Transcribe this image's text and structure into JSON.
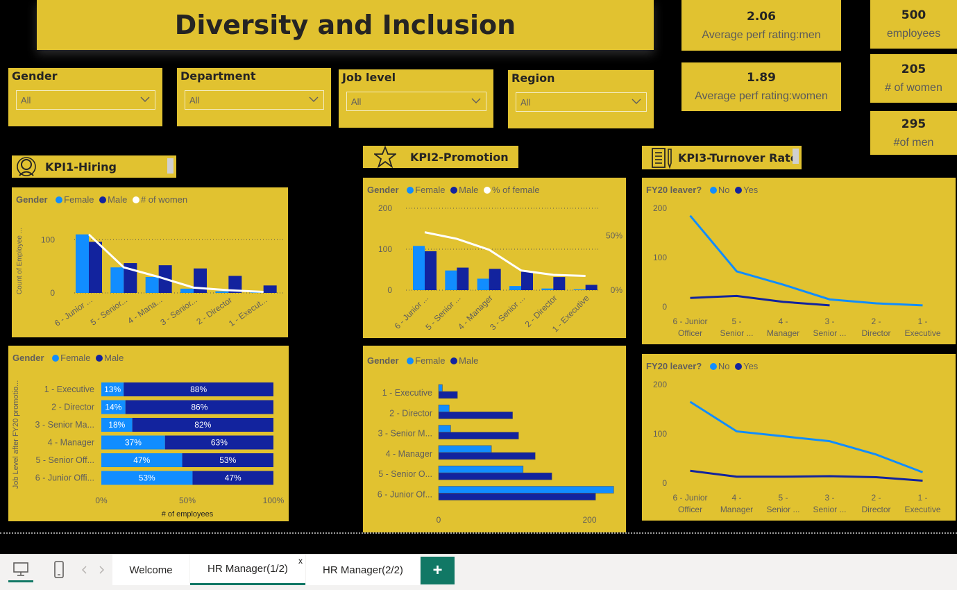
{
  "title": "Diversity and Inclusion",
  "kpis": {
    "avg_men": {
      "value": "2.06",
      "label": "Average perf rating:men"
    },
    "avg_women": {
      "value": "1.89",
      "label": "Average perf rating:women"
    },
    "employees": {
      "value": "500",
      "label": "employees"
    },
    "women": {
      "value": "205",
      "label": "# of women"
    },
    "men": {
      "value": "295",
      "label": "#of men"
    }
  },
  "slicers": [
    {
      "title": "Gender",
      "value": "All"
    },
    {
      "title": "Department",
      "value": "All"
    },
    {
      "title": "Job level",
      "value": "All"
    },
    {
      "title": "Region",
      "value": "All"
    }
  ],
  "sections": {
    "kpi1": "KPI1-Hiring",
    "kpi2": "KPI2-Promotion",
    "kpi3": "KPI3-Turnover Rate"
  },
  "colors": {
    "female": "#118dff",
    "male": "#12239e",
    "line": "#ffffff",
    "card": "#e1c230",
    "accent": "#117865"
  },
  "tabs": {
    "welcome": "Welcome",
    "hr1": "HR Manager(1/2)",
    "hr2": "HR Manager(2/2)",
    "close": "x",
    "add": "+"
  },
  "chart_data": [
    {
      "id": "hiring",
      "type": "bar",
      "legend_title": "Gender",
      "legend": [
        "Female",
        "Male",
        "# of women"
      ],
      "ylabel": "Count of Employee ...",
      "categories": [
        "6 - Junior ...",
        "5 - Senior...",
        "4 - Mana...",
        "3 - Senior...",
        "2 - Director",
        "1 - Execut..."
      ],
      "yticks": [
        "0",
        "100"
      ],
      "ylim": [
        0,
        120
      ],
      "series": [
        {
          "name": "Female",
          "values": [
            110,
            48,
            30,
            8,
            3,
            1
          ]
        },
        {
          "name": "Male",
          "values": [
            96,
            56,
            52,
            46,
            32,
            14
          ]
        },
        {
          "name": "# of women",
          "values": [
            110,
            48,
            30,
            10,
            5,
            2
          ]
        }
      ]
    },
    {
      "id": "promotion",
      "type": "bar",
      "legend_title": "Gender",
      "legend": [
        "Female",
        "Male",
        "% of female"
      ],
      "categories": [
        "6 - Junior ...",
        "5 - Senior ...",
        "4 - Manager",
        "3 - Senior ...",
        "2 - Director",
        "1 - Executive"
      ],
      "yticks": [
        "0",
        "100",
        "200"
      ],
      "y2ticks": [
        "0%",
        "50%"
      ],
      "ylim": [
        0,
        200
      ],
      "y2lim": [
        0,
        0.75
      ],
      "series": [
        {
          "name": "Female",
          "values": [
            108,
            48,
            28,
            10,
            4,
            2
          ]
        },
        {
          "name": "Male",
          "values": [
            95,
            55,
            52,
            45,
            32,
            13
          ]
        },
        {
          "name": "% of female",
          "values": [
            0.53,
            0.47,
            0.37,
            0.18,
            0.14,
            0.13
          ]
        }
      ]
    },
    {
      "id": "turnover1",
      "type": "line",
      "legend_title": "FY20 leaver?",
      "legend": [
        "No",
        "Yes"
      ],
      "categories": [
        [
          "6 - Junior",
          "Officer"
        ],
        [
          "5 -",
          "Senior ..."
        ],
        [
          "4 -",
          "Manager"
        ],
        [
          "3 -",
          "Senior ..."
        ],
        [
          "2 -",
          "Director"
        ],
        [
          "1 -",
          "Executive"
        ]
      ],
      "yticks": [
        "0",
        "100",
        "200"
      ],
      "ylim": [
        0,
        200
      ],
      "series": [
        {
          "name": "No",
          "values": [
            185,
            72,
            45,
            15,
            7,
            3
          ]
        },
        {
          "name": "Yes",
          "values": [
            18,
            22,
            10,
            3,
            null,
            null
          ]
        }
      ]
    },
    {
      "id": "turnover2",
      "type": "line",
      "legend_title": "FY20 leaver?",
      "legend": [
        "No",
        "Yes"
      ],
      "categories": [
        [
          "6 - Junior",
          "Officer"
        ],
        [
          "4 -",
          "Manager"
        ],
        [
          "5 -",
          "Senior ..."
        ],
        [
          "3 -",
          "Senior ..."
        ],
        [
          "2 -",
          "Director"
        ],
        [
          "1 -",
          "Executive"
        ]
      ],
      "yticks": [
        "0",
        "100",
        "200"
      ],
      "ylim": [
        0,
        200
      ],
      "series": [
        {
          "name": "No",
          "values": [
            165,
            105,
            95,
            85,
            58,
            22
          ]
        },
        {
          "name": "Yes",
          "values": [
            25,
            13,
            13,
            14,
            12,
            5
          ]
        }
      ]
    },
    {
      "id": "stacked100",
      "type": "bar",
      "orientation": "horizontal-stacked-100",
      "legend_title": "Gender",
      "legend": [
        "Female",
        "Male"
      ],
      "ylabel": "Job Level after FY20 promotio...",
      "xlabel": "# of employees",
      "categories": [
        "1 - Executive",
        "2 - Director",
        "3 - Senior Ma...",
        "4 - Manager",
        "5 - Senior Off...",
        "6 - Junior Offi..."
      ],
      "xticks": [
        "0%",
        "50%",
        "100%"
      ],
      "series": [
        {
          "name": "Female",
          "values": [
            13,
            14,
            18,
            37,
            47,
            53
          ],
          "labels": [
            "13%",
            "14%",
            "18%",
            "37%",
            "47%",
            "53%"
          ]
        },
        {
          "name": "Male",
          "values": [
            88,
            86,
            82,
            63,
            53,
            47
          ],
          "labels": [
            "88%",
            "86%",
            "82%",
            "63%",
            "53%",
            "47%"
          ]
        }
      ]
    },
    {
      "id": "clustered",
      "type": "bar",
      "orientation": "horizontal",
      "legend_title": "Gender",
      "legend": [
        "Female",
        "Male"
      ],
      "categories": [
        "1 - Executive",
        "2 - Director",
        "3 - Senior M...",
        "4 - Manager",
        "5 - Senior O...",
        "6 - Junior Of..."
      ],
      "xticks": [
        "0",
        "200"
      ],
      "xlim": [
        0,
        240
      ],
      "series": [
        {
          "name": "Female",
          "values": [
            5,
            14,
            16,
            70,
            112,
            232
          ]
        },
        {
          "name": "Male",
          "values": [
            25,
            98,
            106,
            128,
            150,
            208
          ]
        }
      ]
    }
  ]
}
